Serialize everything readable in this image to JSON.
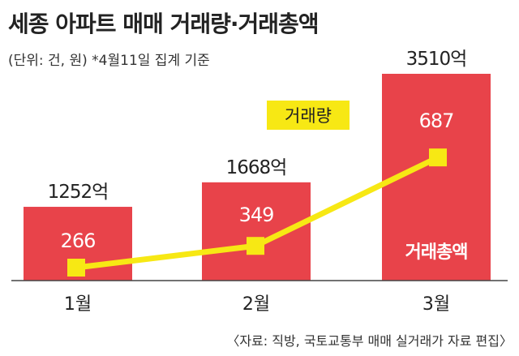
{
  "header": {
    "title": "세종 아파트 매매 거래량·거래총액",
    "subtitle": "(단위: 건, 원)  *4월11일 집계 기준"
  },
  "source": "〈자료: 직방, 국토교통부 매매 실거래가 자료 편집〉",
  "chart_data": {
    "type": "bar",
    "categories": [
      "1월",
      "2월",
      "3월"
    ],
    "series": [
      {
        "name": "거래총액",
        "type": "bar",
        "values": [
          1252,
          1668,
          3510
        ],
        "labels": [
          "1252억",
          "1668억",
          "3510억"
        ],
        "color": "#e8434a"
      },
      {
        "name": "거래량",
        "type": "line",
        "values": [
          266,
          349,
          687
        ],
        "labels": [
          "266",
          "349",
          "687"
        ],
        "color": "#f7e814"
      }
    ],
    "legend": [
      "거래량",
      "거래총액"
    ],
    "grid": false,
    "axis_line": true
  }
}
